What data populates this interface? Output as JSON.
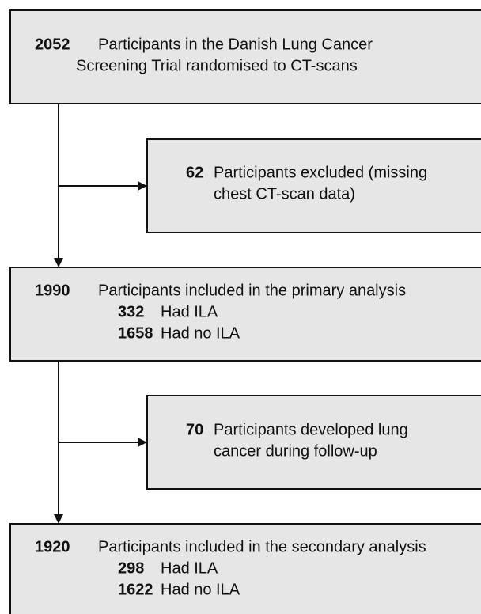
{
  "nodes": [
    {
      "count": 2052,
      "lines": [
        "Participants in the Danish Lung Cancer",
        "Screening Trial randomised to CT-scans"
      ]
    },
    {
      "count": 62,
      "lines": [
        "Participants excluded (missing",
        "chest CT-scan data)"
      ]
    },
    {
      "count": 1990,
      "label": "Participants included in the primary analysis",
      "sub": [
        {
          "count": 332,
          "label": "Had ILA"
        },
        {
          "count": 1658,
          "label": "Had no ILA"
        }
      ]
    },
    {
      "count": 70,
      "lines": [
        "Participants developed lung",
        "cancer during follow-up"
      ]
    },
    {
      "count": 1920,
      "label": "Participants included in the secondary analysis",
      "sub": [
        {
          "count": 298,
          "label": "Had ILA"
        },
        {
          "count": 1622,
          "label": "Had no ILA"
        }
      ]
    }
  ]
}
